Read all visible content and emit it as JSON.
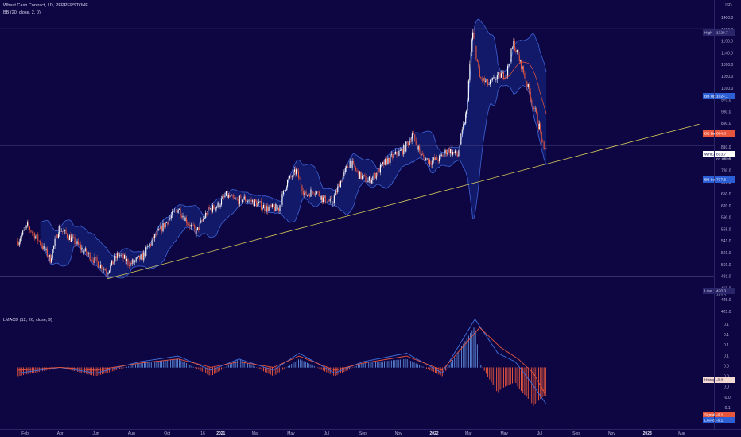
{
  "main_pane": {
    "symbol_title": "Wheat Cash Contract, 1D, PEPPERSTONE",
    "indicator_bb": "BB (20, close, 2, 0)",
    "currency": "USD"
  },
  "lower_pane": {
    "indicator_macd": "LMACD (12, 26, close, 9)"
  },
  "price_tags": {
    "high": {
      "label": "High",
      "value": "1328.7"
    },
    "low": {
      "label": "Low",
      "value": "470.0",
      "sub": "462.0"
    },
    "bb_upper": {
      "label": "BB Upper",
      "value": "1024.1"
    },
    "bb_basis": {
      "label": "BB Basis",
      "value": "864.8"
    },
    "last": {
      "label": "WHEAT",
      "value": "813.7",
      "countdown": "03:45:23"
    },
    "bb_lower": {
      "label": "BB Lower",
      "value": "737.6"
    },
    "histogram": {
      "label": "Histogram",
      "value": "-0.0"
    },
    "signal": {
      "label": "Signal",
      "value": "-0.1"
    },
    "lmacd": {
      "label": "LMACD",
      "value": "-0.1"
    }
  },
  "colors": {
    "background": "#0d0642",
    "bull_candle": "#ffffff",
    "bear_candle": "#e8553d",
    "bb_band": "#3d63d6",
    "bb_fill": "#1a2a8a",
    "trendline": "#d9cc5a",
    "macd_line": "#3f72e0",
    "signal_line": "#e8553d",
    "hist_pos": "#5b86d6",
    "hist_neg": "#e8553d"
  },
  "chart_data": [
    {
      "type": "candlestick",
      "title": "Wheat Cash Contract, 1D, PEPPERSTONE",
      "y_scale": "log",
      "ylim": [
        400,
        1440
      ],
      "y_ticks": [
        "1400.0",
        "1290.0",
        "1190.0",
        "1140.0",
        "1090.0",
        "1050.0",
        "1010.0",
        "970.0",
        "930.0",
        "890.0",
        "850.0",
        "810.0",
        "770.0",
        "730.0",
        "690.0",
        "650.0",
        "620.0",
        "590.0",
        "565.0",
        "541.0",
        "521.0",
        "501.0",
        "481.0",
        "465.0",
        "445.0",
        "425.0"
      ],
      "x_labels": [
        "Feb",
        "Apr",
        "Jun",
        "Aug",
        "Oct",
        "'21 Dec",
        "2021",
        "Mar",
        "May",
        "Jul",
        "Sep",
        "Nov",
        "2022",
        "Mar",
        "May",
        "Jul",
        "Sep",
        "Nov",
        "2023",
        "Mar"
      ],
      "x_label_text": [
        "Feb",
        "Apr",
        "Jun",
        "Aug",
        "Oct",
        "16",
        "2021",
        "Mar",
        "May",
        "Jul",
        "Sep",
        "Nov",
        "2022",
        "Mar",
        "May",
        "Jul",
        "Sep",
        "Nov",
        "2023",
        "Mar"
      ],
      "close_path": [
        [
          "2020-01-20",
          545
        ],
        [
          "2020-02-05",
          580
        ],
        [
          "2020-02-25",
          545
        ],
        [
          "2020-03-15",
          505
        ],
        [
          "2020-03-30",
          575
        ],
        [
          "2020-04-20",
          550
        ],
        [
          "2020-05-10",
          525
        ],
        [
          "2020-06-01",
          500
        ],
        [
          "2020-06-20",
          480
        ],
        [
          "2020-07-10",
          515
        ],
        [
          "2020-07-30",
          495
        ],
        [
          "2020-08-20",
          510
        ],
        [
          "2020-09-10",
          555
        ],
        [
          "2020-09-30",
          590
        ],
        [
          "2020-10-20",
          625
        ],
        [
          "2020-11-05",
          590
        ],
        [
          "2020-11-20",
          565
        ],
        [
          "2020-12-10",
          620
        ],
        [
          "2020-12-25",
          630
        ],
        [
          "2021-01-10",
          660
        ],
        [
          "2021-01-25",
          645
        ],
        [
          "2021-02-10",
          650
        ],
        [
          "2021-03-01",
          640
        ],
        [
          "2021-03-20",
          625
        ],
        [
          "2021-04-10",
          625
        ],
        [
          "2021-04-25",
          700
        ],
        [
          "2021-05-10",
          730
        ],
        [
          "2021-05-25",
          660
        ],
        [
          "2021-06-10",
          675
        ],
        [
          "2021-06-25",
          650
        ],
        [
          "2021-07-10",
          640
        ],
        [
          "2021-07-25",
          700
        ],
        [
          "2021-08-10",
          760
        ],
        [
          "2021-08-25",
          720
        ],
        [
          "2021-09-10",
          700
        ],
        [
          "2021-09-25",
          725
        ],
        [
          "2021-10-10",
          760
        ],
        [
          "2021-10-25",
          780
        ],
        [
          "2021-11-10",
          800
        ],
        [
          "2021-11-25",
          850
        ],
        [
          "2021-12-10",
          780
        ],
        [
          "2021-12-25",
          760
        ],
        [
          "2022-01-10",
          770
        ],
        [
          "2022-01-25",
          800
        ],
        [
          "2022-02-10",
          780
        ],
        [
          "2022-02-25",
          930
        ],
        [
          "2022-03-08",
          1300
        ],
        [
          "2022-03-20",
          1080
        ],
        [
          "2022-04-05",
          1050
        ],
        [
          "2022-04-20",
          1090
        ],
        [
          "2022-05-05",
          1100
        ],
        [
          "2022-05-17",
          1250
        ],
        [
          "2022-05-30",
          1140
        ],
        [
          "2022-06-15",
          1000
        ],
        [
          "2022-06-30",
          880
        ],
        [
          "2022-07-08",
          790
        ],
        [
          "2022-07-12",
          813.7
        ]
      ],
      "series": [
        {
          "name": "BB Upper",
          "values": [
            [
              "2020-01-20",
              570
            ],
            [
              "2020-04-01",
              600
            ],
            [
              "2020-06-20",
              525
            ],
            [
              "2020-09-15",
              590
            ],
            [
              "2020-11-15",
              645
            ],
            [
              "2021-01-15",
              690
            ],
            [
              "2021-04-01",
              660
            ],
            [
              "2021-05-15",
              760
            ],
            [
              "2021-07-15",
              720
            ],
            [
              "2021-09-01",
              780
            ],
            [
              "2021-11-15",
              870
            ],
            [
              "2022-01-20",
              830
            ],
            [
              "2022-03-10",
              1400
            ],
            [
              "2022-05-20",
              1310
            ],
            [
              "2022-07-12",
              1024.1
            ]
          ]
        },
        {
          "name": "BB Basis",
          "values": [
            [
              "2022-06-20",
              1120
            ],
            [
              "2022-07-12",
              864.8
            ]
          ]
        },
        {
          "name": "BB Lower",
          "values": [
            [
              "2020-01-20",
              530
            ],
            [
              "2020-04-01",
              500
            ],
            [
              "2020-06-20",
              470
            ],
            [
              "2020-09-15",
              520
            ],
            [
              "2020-11-15",
              545
            ],
            [
              "2021-01-15",
              600
            ],
            [
              "2021-04-01",
              595
            ],
            [
              "2021-05-15",
              630
            ],
            [
              "2021-07-15",
              610
            ],
            [
              "2021-09-01",
              660
            ],
            [
              "2021-11-15",
              720
            ],
            [
              "2022-01-20",
              740
            ],
            [
              "2022-03-15",
              680
            ],
            [
              "2022-05-20",
              1000
            ],
            [
              "2022-07-12",
              737.6
            ]
          ]
        }
      ],
      "annotations": [
        {
          "type": "trendline",
          "from": [
            "2020-06-20",
            465
          ],
          "to": [
            "2023-03-31",
            890
          ]
        },
        {
          "type": "hline",
          "label": "High",
          "value": 1328.7
        },
        {
          "type": "hline",
          "label": "Low",
          "value": 470.0
        },
        {
          "type": "hline",
          "label": "WHEAT",
          "value": 813.7
        }
      ]
    },
    {
      "type": "line",
      "title": "LMACD (12, 26, close, 9)",
      "ylim": [
        -0.2,
        0.18
      ],
      "y_ticks": [
        "0.1",
        "0.1",
        "0.1",
        "0.1",
        "0.0",
        "0.0",
        "0.0",
        "-0.0",
        "-0.1",
        "-0.1"
      ],
      "series": [
        {
          "name": "LMACD",
          "values": [
            [
              "2020-01-20",
              -0.02
            ],
            [
              "2020-04-01",
              0.0
            ],
            [
              "2020-06-01",
              -0.02
            ],
            [
              "2020-08-15",
              0.02
            ],
            [
              "2020-10-20",
              0.04
            ],
            [
              "2020-12-15",
              -0.01
            ],
            [
              "2021-02-01",
              0.03
            ],
            [
              "2021-04-01",
              -0.01
            ],
            [
              "2021-05-15",
              0.05
            ],
            [
              "2021-07-15",
              -0.02
            ],
            [
              "2021-09-01",
              0.02
            ],
            [
              "2021-11-15",
              0.05
            ],
            [
              "2022-01-15",
              -0.02
            ],
            [
              "2022-03-12",
              0.17
            ],
            [
              "2022-04-20",
              0.05
            ],
            [
              "2022-05-20",
              0.02
            ],
            [
              "2022-06-15",
              -0.05
            ],
            [
              "2022-07-12",
              -0.13
            ]
          ]
        },
        {
          "name": "Signal",
          "values": [
            [
              "2020-01-20",
              -0.01
            ],
            [
              "2020-04-01",
              0.0
            ],
            [
              "2020-06-01",
              -0.01
            ],
            [
              "2020-08-15",
              0.015
            ],
            [
              "2020-10-20",
              0.03
            ],
            [
              "2020-12-15",
              0.0
            ],
            [
              "2021-02-01",
              0.02
            ],
            [
              "2021-04-01",
              0.0
            ],
            [
              "2021-05-15",
              0.04
            ],
            [
              "2021-07-15",
              -0.01
            ],
            [
              "2021-09-01",
              0.015
            ],
            [
              "2021-11-15",
              0.04
            ],
            [
              "2022-01-15",
              -0.01
            ],
            [
              "2022-03-20",
              0.14
            ],
            [
              "2022-04-25",
              0.07
            ],
            [
              "2022-05-25",
              0.03
            ],
            [
              "2022-06-20",
              -0.02
            ],
            [
              "2022-07-12",
              -0.1
            ]
          ]
        }
      ]
    }
  ]
}
